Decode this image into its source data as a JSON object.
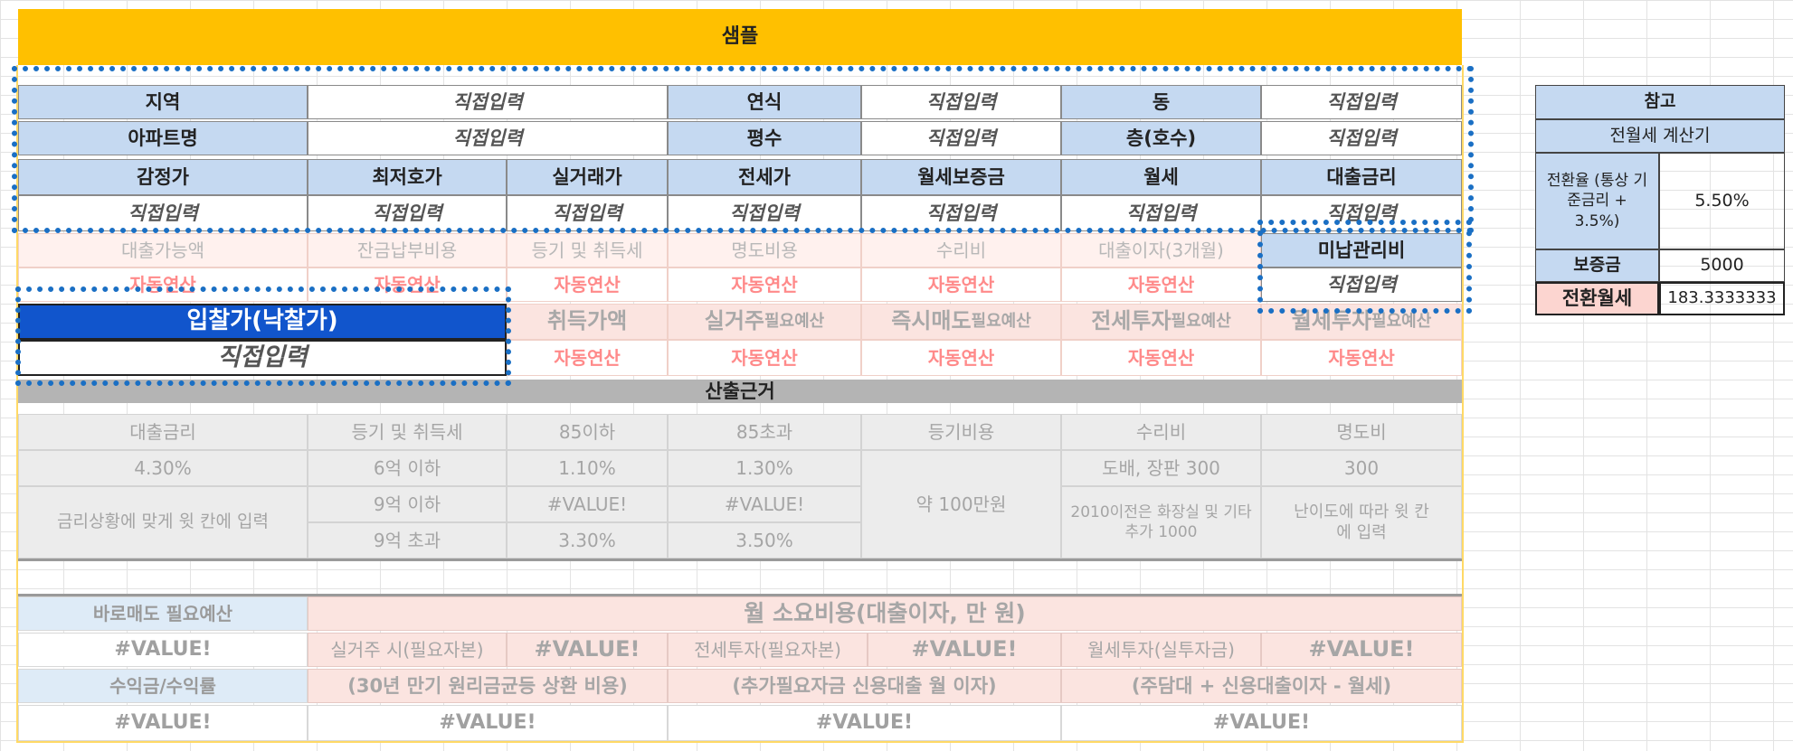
{
  "title": "샘플",
  "row1": {
    "region_label": "지역",
    "region_value": "직접입력",
    "year_label": "연식",
    "year_value": "직접입력",
    "dong_label": "동",
    "dong_value": "직접입력"
  },
  "row2": {
    "apt_label": "아파트명",
    "apt_value": "직접입력",
    "area_label": "평수",
    "area_value": "직접입력",
    "floor_label": "층(호수)",
    "floor_value": "직접입력"
  },
  "price_headers": [
    "감정가",
    "최저호가",
    "실거래가",
    "전세가",
    "월세보증금",
    "월세",
    "대출금리"
  ],
  "price_values": [
    "직접입력",
    "직접입력",
    "직접입력",
    "직접입력",
    "직접입력",
    "직접입력",
    "직접입력"
  ],
  "cost_headers": [
    "대출가능액",
    "잔금납부비용",
    "등기 및 취득세",
    "명도비용",
    "수리비",
    "대출이자(3개월)",
    "미납관리비"
  ],
  "cost_values": [
    "자동연산",
    "자동연산",
    "자동연산",
    "자동연산",
    "자동연산",
    "자동연산",
    "직접입력"
  ],
  "bid": {
    "label": "입찰가(낙찰가)",
    "value": "직접입력"
  },
  "budget": {
    "acq": "취득가액",
    "live": "실거주",
    "live_sub": "필요예산",
    "quick": "즉시매도",
    "quick_sub": "필요예산",
    "jeonse": "전세투자",
    "jeonse_sub": "필요예산",
    "wolse": "월세투자",
    "wolse_sub": "필요예산"
  },
  "budget_values": [
    "자동연산",
    "자동연산",
    "자동연산",
    "자동연산",
    "자동연산"
  ],
  "basis": {
    "header": "산출근거",
    "cols": [
      "대출금리",
      "등기 및 취득세",
      "85이하",
      "85초과",
      "등기비용",
      "수리비",
      "명도비"
    ],
    "rate": "4.30%",
    "rate_note": "금리상황에 맞게 윗 칸에 입력",
    "tax_rows": [
      {
        "label": "6억 이하",
        "le85": "1.10%",
        "gt85": "1.30%"
      },
      {
        "label": "9억 이하",
        "le85": "#VALUE!",
        "gt85": "#VALUE!"
      },
      {
        "label": "9억 초과",
        "le85": "3.30%",
        "gt85": "3.50%"
      }
    ],
    "reg_cost": "약 100만원",
    "repair_1": "도배, 장판 300",
    "repair_2": "2010이전은 화장실 및 기타 추가 1000",
    "evict_1": "300",
    "evict_2": "난이도에 따라 윗 칸에 입력"
  },
  "summary": {
    "quick_label": "바로매도 필요예산",
    "quick_value": "#VALUE!",
    "profit_label": "수익금/수익률",
    "profit_value": "#VALUE!",
    "monthly_header": "월 소요비용(대출이자, 만 원)",
    "live_label": "실거주 시(필요자본)",
    "live_value": "#VALUE!",
    "jeonse_label": "전세투자(필요자본)",
    "jeonse_value": "#VALUE!",
    "wolse_label": "월세투자(실투자금)",
    "wolse_value": "#VALUE!",
    "live_note": "(30년 만기 원리금균등 상환 비용)",
    "jeonse_note": "(추가필요자금 신용대출 월 이자)",
    "wolse_note": "(주담대 + 신용대출이자 - 월세)",
    "live_total": "#VALUE!",
    "jeonse_total": "#VALUE!",
    "wolse_total": "#VALUE!"
  },
  "reference": {
    "title": "참고",
    "subtitle": "전월세 계산기",
    "rate_label": "전환율 (통상 기준금리 + 3.5%)",
    "rate_value": "5.50%",
    "deposit_label": "보증금",
    "deposit_value": "5000",
    "result_label": "전환월세",
    "result_value": "183.3333333"
  },
  "colors": {
    "title_bar": "#ffc000",
    "header": "#c5d9f1",
    "bid": "#1155cc",
    "auto_text": "#ff8a8a",
    "highlight_border": "#1a6fc4"
  }
}
